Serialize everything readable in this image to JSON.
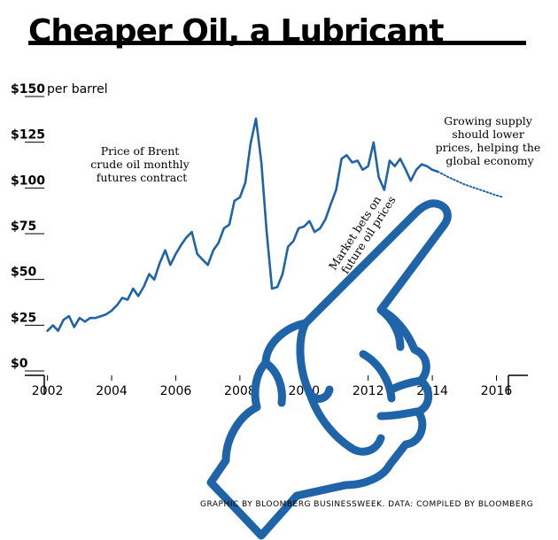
{
  "title": "Cheaper Oil, a Lubricant",
  "credit": "GRAPHIC BY BLOOMBERG BUSINESSWEEK. DATA: COMPILED BY BLOOMBERG",
  "colors": {
    "line": "#1f64a8",
    "text": "#000000"
  },
  "annotations": {
    "price_note": [
      "Price of Brent",
      "crude oil monthly",
      "futures contract"
    ],
    "supply_note": [
      "Growing supply",
      "should lower",
      "prices, helping the",
      "global economy"
    ],
    "bets_note": [
      "Market bets on",
      "future oil prices"
    ]
  },
  "illustration": {
    "type": "hand",
    "icon": "pointing-hand-icon"
  },
  "chart_data": {
    "type": "line",
    "title": "Cheaper Oil, a Lubricant",
    "ylabel": "per barrel",
    "ylim": [
      0,
      150
    ],
    "xlim": [
      2001.9,
      2016.4
    ],
    "yticks": [
      {
        "value": 0,
        "label": "$0"
      },
      {
        "value": 25,
        "label": "$25"
      },
      {
        "value": 50,
        "label": "$50"
      },
      {
        "value": 75,
        "label": "$75"
      },
      {
        "value": 100,
        "label": "$100"
      },
      {
        "value": 125,
        "label": "$125"
      },
      {
        "value": 150,
        "label": "$150"
      }
    ],
    "ytick_suffix": "per barrel",
    "xticks": [
      {
        "value": 2002,
        "label": "2002"
      },
      {
        "value": 2004,
        "label": "2004"
      },
      {
        "value": 2006,
        "label": "2006"
      },
      {
        "value": 2008,
        "label": "2008"
      },
      {
        "value": 2010,
        "label": "2010"
      },
      {
        "value": 2012,
        "label": "2012"
      },
      {
        "value": 2014,
        "label": "2014"
      },
      {
        "value": 2016,
        "label": "2016"
      }
    ],
    "series": [
      {
        "style": "solid",
        "points": [
          [
            2002.0,
            20
          ],
          [
            2002.17,
            23
          ],
          [
            2002.33,
            20
          ],
          [
            2002.5,
            26
          ],
          [
            2002.67,
            28
          ],
          [
            2002.83,
            22
          ],
          [
            2003.0,
            27
          ],
          [
            2003.17,
            25
          ],
          [
            2003.33,
            27
          ],
          [
            2003.5,
            27
          ],
          [
            2003.67,
            28
          ],
          [
            2003.83,
            29
          ],
          [
            2004.0,
            31
          ],
          [
            2004.17,
            34
          ],
          [
            2004.33,
            38
          ],
          [
            2004.5,
            37
          ],
          [
            2004.67,
            43
          ],
          [
            2004.83,
            39
          ],
          [
            2005.0,
            44
          ],
          [
            2005.17,
            51
          ],
          [
            2005.33,
            48
          ],
          [
            2005.5,
            57
          ],
          [
            2005.67,
            64
          ],
          [
            2005.83,
            56
          ],
          [
            2006.0,
            62
          ],
          [
            2006.17,
            67
          ],
          [
            2006.33,
            71
          ],
          [
            2006.5,
            74
          ],
          [
            2006.67,
            62
          ],
          [
            2006.83,
            59
          ],
          [
            2007.0,
            56
          ],
          [
            2007.17,
            64
          ],
          [
            2007.33,
            68
          ],
          [
            2007.5,
            76
          ],
          [
            2007.67,
            78
          ],
          [
            2007.83,
            91
          ],
          [
            2008.0,
            93
          ],
          [
            2008.17,
            101
          ],
          [
            2008.33,
            122
          ],
          [
            2008.5,
            136
          ],
          [
            2008.67,
            112
          ],
          [
            2008.83,
            75
          ],
          [
            2009.0,
            43
          ],
          [
            2009.17,
            44
          ],
          [
            2009.33,
            51
          ],
          [
            2009.5,
            66
          ],
          [
            2009.67,
            69
          ],
          [
            2009.83,
            76
          ],
          [
            2010.0,
            77
          ],
          [
            2010.17,
            80
          ],
          [
            2010.33,
            74
          ],
          [
            2010.5,
            76
          ],
          [
            2010.67,
            81
          ],
          [
            2010.83,
            89
          ],
          [
            2011.0,
            97
          ],
          [
            2011.17,
            114
          ],
          [
            2011.33,
            116
          ],
          [
            2011.5,
            112
          ],
          [
            2011.67,
            113
          ],
          [
            2011.83,
            108
          ],
          [
            2012.0,
            110
          ],
          [
            2012.17,
            123
          ],
          [
            2012.33,
            104
          ],
          [
            2012.5,
            97
          ],
          [
            2012.67,
            113
          ],
          [
            2012.83,
            110
          ],
          [
            2013.0,
            114
          ],
          [
            2013.17,
            108
          ],
          [
            2013.33,
            102
          ],
          [
            2013.5,
            108
          ],
          [
            2013.67,
            111
          ],
          [
            2013.83,
            110
          ],
          [
            2014.0,
            108
          ],
          [
            2014.17,
            107
          ]
        ]
      },
      {
        "style": "dotted",
        "points": [
          [
            2014.17,
            107
          ],
          [
            2014.5,
            104
          ],
          [
            2015.0,
            100
          ],
          [
            2015.5,
            97
          ],
          [
            2016.0,
            94
          ],
          [
            2016.2,
            93
          ]
        ]
      }
    ]
  }
}
